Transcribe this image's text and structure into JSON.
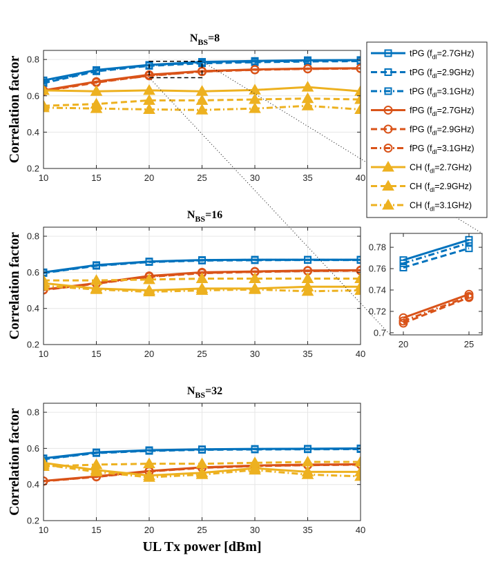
{
  "colors": {
    "tPG": "#0072BD",
    "fPG": "#D95319",
    "CH": "#EDB120"
  },
  "legend": {
    "placement": "right",
    "entries": [
      {
        "pre": "tPG (f",
        "sub": "dl",
        "post": "=2.7GHz)",
        "method": "tPG",
        "style": "solid"
      },
      {
        "pre": "tPG (f",
        "sub": "dl",
        "post": "=2.9GHz)",
        "method": "tPG",
        "style": "dash"
      },
      {
        "pre": "tPG (f",
        "sub": "dl",
        "post": "=3.1GHz)",
        "method": "tPG",
        "style": "dashdot"
      },
      {
        "pre": "fPG (f",
        "sub": "dl",
        "post": "=2.7GHz)",
        "method": "fPG",
        "style": "solid"
      },
      {
        "pre": "fPG (f",
        "sub": "dl",
        "post": "=2.9GHz)",
        "method": "fPG",
        "style": "dash"
      },
      {
        "pre": "fPG (f",
        "sub": "dl",
        "post": "=3.1GHz)",
        "method": "fPG",
        "style": "dashdot"
      },
      {
        "pre": "CH (f",
        "sub": "dl",
        "post": "=2.7GHz)",
        "method": "CH",
        "style": "solid"
      },
      {
        "pre": "CH (f",
        "sub": "dl",
        "post": "=2.9GHz)",
        "method": "CH",
        "style": "dash"
      },
      {
        "pre": "CH (f",
        "sub": "dl",
        "post": "=3.1GHz)",
        "method": "CH",
        "style": "dashdot"
      }
    ]
  },
  "chart_data": [
    {
      "type": "line",
      "title_main": "N",
      "title_sub": "BS",
      "title_post": "=8",
      "ylabel": "Correlation factor",
      "xlabel": "",
      "x": [
        10,
        15,
        20,
        25,
        30,
        35,
        40
      ],
      "xticks": [
        "10",
        "15",
        "20",
        "25",
        "30",
        "35",
        "40"
      ],
      "ylim": [
        0.2,
        0.85
      ],
      "yticks": [
        0.2,
        0.4,
        0.6,
        0.8
      ],
      "ytick_labels": [
        "0.2",
        "0.4",
        "0.6",
        "0.8"
      ],
      "grid": true,
      "zoom_box": {
        "x": [
          20,
          25
        ],
        "y": [
          0.7,
          0.79
        ]
      },
      "series": [
        {
          "legend": 0,
          "values": [
            0.685,
            0.742,
            0.77,
            0.787,
            0.792,
            0.796,
            0.797
          ]
        },
        {
          "legend": 1,
          "values": [
            0.67,
            0.735,
            0.765,
            0.779,
            0.785,
            0.789,
            0.791
          ]
        },
        {
          "legend": 2,
          "values": [
            0.676,
            0.739,
            0.768,
            0.784,
            0.789,
            0.793,
            0.795
          ]
        },
        {
          "legend": 3,
          "values": [
            0.63,
            0.678,
            0.716,
            0.736,
            0.745,
            0.75,
            0.752
          ]
        },
        {
          "legend": 4,
          "values": [
            0.625,
            0.673,
            0.712,
            0.733,
            0.743,
            0.748,
            0.75
          ]
        },
        {
          "legend": 5,
          "values": [
            0.628,
            0.676,
            0.71,
            0.734,
            0.744,
            0.749,
            0.751
          ]
        },
        {
          "legend": 6,
          "values": [
            0.63,
            0.625,
            0.63,
            0.625,
            0.632,
            0.648,
            0.625
          ]
        },
        {
          "legend": 7,
          "values": [
            0.545,
            0.555,
            0.575,
            0.575,
            0.58,
            0.585,
            0.58
          ]
        },
        {
          "legend": 8,
          "values": [
            0.535,
            0.53,
            0.525,
            0.522,
            0.53,
            0.545,
            0.525
          ]
        }
      ]
    },
    {
      "type": "line",
      "title_main": "N",
      "title_sub": "BS",
      "title_post": "=16",
      "ylabel": "Correlation factor",
      "xlabel": "",
      "x": [
        10,
        15,
        20,
        25,
        30,
        35,
        40
      ],
      "xticks": [
        "10",
        "15",
        "20",
        "25",
        "30",
        "35",
        "40"
      ],
      "ylim": [
        0.2,
        0.85
      ],
      "yticks": [
        0.2,
        0.4,
        0.6,
        0.8
      ],
      "ytick_labels": [
        "0.2",
        "0.4",
        "0.6",
        "0.8"
      ],
      "grid": true,
      "series": [
        {
          "legend": 0,
          "values": [
            0.6,
            0.64,
            0.66,
            0.668,
            0.67,
            0.67,
            0.67
          ]
        },
        {
          "legend": 1,
          "values": [
            0.596,
            0.636,
            0.657,
            0.665,
            0.667,
            0.668,
            0.668
          ]
        },
        {
          "legend": 2,
          "values": [
            0.598,
            0.638,
            0.659,
            0.667,
            0.669,
            0.669,
            0.669
          ]
        },
        {
          "legend": 3,
          "values": [
            0.505,
            0.54,
            0.58,
            0.6,
            0.605,
            0.61,
            0.612
          ]
        },
        {
          "legend": 4,
          "values": [
            0.502,
            0.537,
            0.575,
            0.595,
            0.602,
            0.607,
            0.609
          ]
        },
        {
          "legend": 5,
          "values": [
            0.503,
            0.538,
            0.577,
            0.597,
            0.603,
            0.608,
            0.61
          ]
        },
        {
          "legend": 6,
          "values": [
            0.54,
            0.51,
            0.5,
            0.51,
            0.51,
            0.52,
            0.52
          ]
        },
        {
          "legend": 7,
          "values": [
            0.555,
            0.555,
            0.56,
            0.565,
            0.565,
            0.565,
            0.565
          ]
        },
        {
          "legend": 8,
          "values": [
            0.525,
            0.505,
            0.492,
            0.5,
            0.505,
            0.495,
            0.5
          ]
        }
      ]
    },
    {
      "type": "line",
      "title_main": "N",
      "title_sub": "BS",
      "title_post": "=32",
      "ylabel": "Correlation factor",
      "xlabel": "UL Tx power [dBm]",
      "x": [
        10,
        15,
        20,
        25,
        30,
        35,
        40
      ],
      "xticks": [
        "10",
        "15",
        "20",
        "25",
        "30",
        "35",
        "40"
      ],
      "ylim": [
        0.2,
        0.85
      ],
      "yticks": [
        0.2,
        0.4,
        0.6,
        0.8
      ],
      "ytick_labels": [
        "0.2",
        "0.4",
        "0.6",
        "0.8"
      ],
      "grid": true,
      "series": [
        {
          "legend": 0,
          "values": [
            0.545,
            0.578,
            0.59,
            0.595,
            0.597,
            0.598,
            0.6
          ]
        },
        {
          "legend": 1,
          "values": [
            0.54,
            0.574,
            0.586,
            0.592,
            0.594,
            0.595,
            0.596
          ]
        },
        {
          "legend": 2,
          "values": [
            0.542,
            0.576,
            0.588,
            0.594,
            0.596,
            0.597,
            0.598
          ]
        },
        {
          "legend": 3,
          "values": [
            0.42,
            0.445,
            0.475,
            0.495,
            0.505,
            0.51,
            0.512
          ]
        },
        {
          "legend": 4,
          "values": [
            0.418,
            0.442,
            0.472,
            0.492,
            0.502,
            0.507,
            0.51
          ]
        },
        {
          "legend": 5,
          "values": [
            0.419,
            0.443,
            0.473,
            0.493,
            0.503,
            0.508,
            0.511
          ]
        },
        {
          "legend": 6,
          "values": [
            0.52,
            0.48,
            0.45,
            0.465,
            0.49,
            0.47,
            0.47
          ]
        },
        {
          "legend": 7,
          "values": [
            0.5,
            0.51,
            0.515,
            0.515,
            0.52,
            0.525,
            0.525
          ]
        },
        {
          "legend": 8,
          "values": [
            0.51,
            0.47,
            0.44,
            0.455,
            0.48,
            0.455,
            0.445
          ]
        }
      ]
    },
    {
      "type": "line",
      "title_main": "",
      "title_sub": "",
      "title_post": "",
      "ylabel": "",
      "xlabel": "",
      "x": [
        20,
        25
      ],
      "xticks": [
        "20",
        "25"
      ],
      "xlim": [
        19,
        26
      ],
      "ylim": [
        0.698,
        0.793
      ],
      "yticks": [
        0.7,
        0.72,
        0.74,
        0.76,
        0.78
      ],
      "ytick_labels": [
        "0.7",
        "0.72",
        "0.74",
        "0.76",
        "0.78"
      ],
      "grid": false,
      "series": [
        {
          "legend": 0,
          "values": [
            0.768,
            0.787
          ]
        },
        {
          "legend": 1,
          "values": [
            0.761,
            0.779
          ]
        },
        {
          "legend": 2,
          "values": [
            0.765,
            0.784
          ]
        },
        {
          "legend": 3,
          "values": [
            0.714,
            0.736
          ]
        },
        {
          "legend": 4,
          "values": [
            0.709,
            0.733
          ]
        },
        {
          "legend": 5,
          "values": [
            0.711,
            0.734
          ]
        }
      ]
    }
  ]
}
